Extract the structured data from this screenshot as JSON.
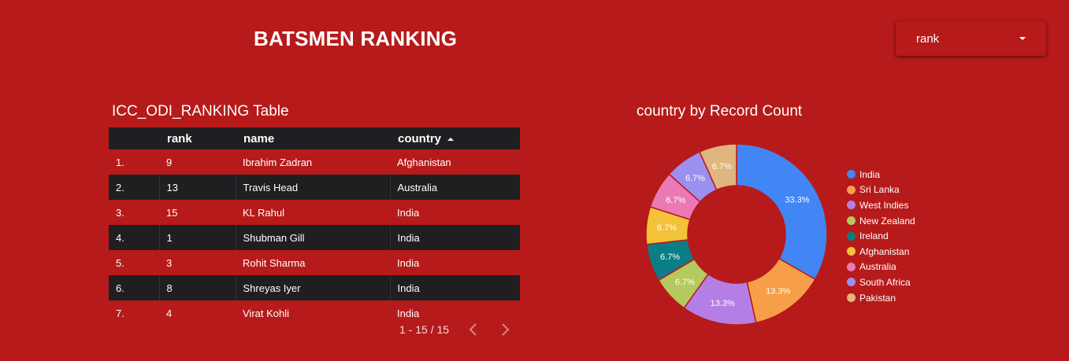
{
  "header": {
    "title": "BATSMEN RANKING"
  },
  "filter": {
    "value": "rank"
  },
  "table": {
    "title": "ICC_ODI_RANKING Table",
    "columns": [
      "rank",
      "name",
      "country"
    ],
    "rows": [
      {
        "idx": "1.",
        "rank": "9",
        "name": "Ibrahim Zadran",
        "country": "Afghanistan"
      },
      {
        "idx": "2.",
        "rank": "13",
        "name": "Travis Head",
        "country": "Australia"
      },
      {
        "idx": "3.",
        "rank": "15",
        "name": "KL Rahul",
        "country": "India"
      },
      {
        "idx": "4.",
        "rank": "1",
        "name": "Shubman Gill",
        "country": "India"
      },
      {
        "idx": "5.",
        "rank": "3",
        "name": "Rohit Sharma",
        "country": "India"
      },
      {
        "idx": "6.",
        "rank": "8",
        "name": "Shreyas Iyer",
        "country": "India"
      },
      {
        "idx": "7.",
        "rank": "4",
        "name": "Virat Kohli",
        "country": "India"
      }
    ],
    "pagination": "1 - 15 / 15"
  },
  "chart_data": {
    "type": "pie",
    "donut": true,
    "title": "country by Record Count",
    "legend_position": "right",
    "slices": [
      {
        "label": "India",
        "value": 33.3,
        "display": "33.3%",
        "color": "#4285f4"
      },
      {
        "label": "Sri Lanka",
        "value": 13.3,
        "display": "13.3%",
        "color": "#f79f48"
      },
      {
        "label": "West Indies",
        "value": 13.3,
        "display": "13.3%",
        "color": "#b57ee5"
      },
      {
        "label": "New Zealand",
        "value": 6.7,
        "display": "6.7%",
        "color": "#b4c95e"
      },
      {
        "label": "Ireland",
        "value": 6.7,
        "display": "6.7%",
        "color": "#0b7d87"
      },
      {
        "label": "Afghanistan",
        "value": 6.7,
        "display": "6.7%",
        "color": "#f3c238"
      },
      {
        "label": "Australia",
        "value": 6.7,
        "display": "6.7%",
        "color": "#ea79b5"
      },
      {
        "label": "South Africa",
        "value": 6.7,
        "display": "6.7%",
        "color": "#9b8ff0"
      },
      {
        "label": "Pakistan",
        "value": 6.7,
        "display": "6.7%",
        "color": "#dfb67d"
      }
    ]
  }
}
